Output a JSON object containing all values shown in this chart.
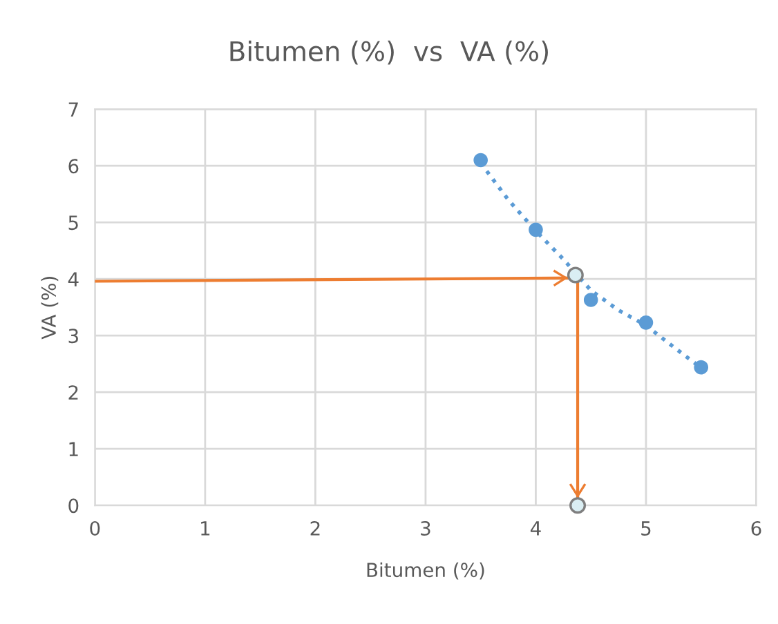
{
  "chart_data": {
    "type": "scatter",
    "title": "Bitumen (%)  vs  VA (%)",
    "xlabel": "Bitumen (%)",
    "ylabel": "VA (%)",
    "xlim": [
      0,
      6
    ],
    "xticks": [
      0,
      1,
      2,
      3,
      4,
      5,
      6
    ],
    "ylim": [
      0,
      7
    ],
    "yticks": [
      0,
      1,
      2,
      3,
      4,
      5,
      6,
      7
    ],
    "grid": true,
    "legend": false,
    "series": [
      {
        "type": "line",
        "color": "#5b9bd5",
        "line_style": "dotted",
        "marker": "none",
        "x": [
          3.5,
          3.75,
          4.0,
          4.25,
          4.5,
          4.75,
          5.0,
          5.25,
          5.5
        ],
        "values": [
          6.05,
          5.4,
          4.85,
          4.35,
          3.8,
          3.45,
          3.18,
          2.8,
          2.43
        ]
      },
      {
        "color": "#5b9bd5",
        "marker": "circle",
        "x": [
          3.5,
          4.0,
          4.5,
          5.0,
          5.5
        ],
        "values": [
          6.1,
          4.87,
          3.63,
          3.23,
          2.44
        ]
      },
      {
        "type": "line",
        "color": "#ed7d31",
        "line_style": "solid",
        "marker": "none",
        "x": [
          0,
          4.36
        ],
        "values": [
          3.96,
          4.02
        ]
      },
      {
        "type": "line",
        "color": "#ed7d31",
        "line_style": "solid",
        "marker": "none",
        "x": [
          4.38,
          4.38
        ],
        "values": [
          4.07,
          0
        ]
      },
      {
        "type": "scatter",
        "color": "#daeef3",
        "marker": "circle",
        "x": [
          4.36,
          4.38
        ],
        "values": [
          4.07,
          0
        ]
      }
    ]
  }
}
